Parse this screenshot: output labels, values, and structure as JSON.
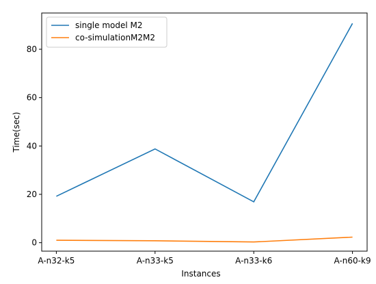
{
  "chart_data": {
    "type": "line",
    "title": "",
    "xlabel": "Instances",
    "ylabel": "Time(sec)",
    "categories": [
      "A-n32-k5",
      "A-n33-k5",
      "A-n33-k6",
      "A-n60-k9"
    ],
    "ylim": [
      -3.5,
      95
    ],
    "yticks": [
      0,
      20,
      40,
      60,
      80
    ],
    "grid": false,
    "legend_position": "upper-left",
    "series": [
      {
        "name": "single model M2",
        "color": "#1f77b4",
        "values": [
          19.2,
          38.8,
          16.9,
          90.7
        ]
      },
      {
        "name": "co-simulationM2M2",
        "color": "#ff7f0e",
        "values": [
          1.0,
          0.8,
          0.3,
          2.3
        ]
      }
    ]
  }
}
